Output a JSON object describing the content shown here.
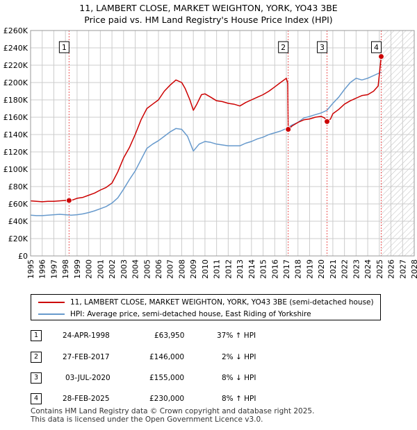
{
  "title_line1": "11, LAMBERT CLOSE, MARKET WEIGHTON, YORK, YO43 3BE",
  "title_line2": "Price paid vs. HM Land Registry's House Price Index (HPI)",
  "colors": {
    "red": "#cc0000",
    "blue": "#6699cc",
    "grid": "#cccccc",
    "marker_line": "#ee5555",
    "hatch": "#bbbbbb"
  },
  "chart_data": {
    "type": "line",
    "y_tick_labels": [
      "£0",
      "£20K",
      "£40K",
      "£60K",
      "£80K",
      "£100K",
      "£120K",
      "£140K",
      "£160K",
      "£180K",
      "£200K",
      "£220K",
      "£240K",
      "£260K"
    ],
    "y_ticks": [
      0,
      20000,
      40000,
      60000,
      80000,
      100000,
      120000,
      140000,
      160000,
      180000,
      200000,
      220000,
      240000,
      260000
    ],
    "ylim": [
      0,
      260000
    ],
    "x_ticks": [
      "1995",
      "1996",
      "1997",
      "1998",
      "1999",
      "2000",
      "2001",
      "2002",
      "2003",
      "2004",
      "2005",
      "2006",
      "2007",
      "2008",
      "2009",
      "2010",
      "2011",
      "2012",
      "2013",
      "2014",
      "2015",
      "2016",
      "2017",
      "2018",
      "2019",
      "2020",
      "2021",
      "2022",
      "2023",
      "2024",
      "2025",
      "2026",
      "2027",
      "2028"
    ],
    "xlim": [
      1995,
      2028
    ],
    "future_region_start": 2025.16,
    "series": [
      {
        "name": "11, LAMBERT CLOSE, MARKET WEIGHTON, YORK, YO43 3BE (semi-detached house)",
        "color": "#cc0000",
        "points": [
          [
            1995.0,
            63500
          ],
          [
            1995.5,
            63000
          ],
          [
            1996.0,
            62500
          ],
          [
            1996.5,
            63000
          ],
          [
            1997.0,
            63000
          ],
          [
            1997.5,
            63500
          ],
          [
            1998.0,
            64000
          ],
          [
            1998.3,
            63950
          ],
          [
            1998.6,
            64500
          ],
          [
            1999.0,
            66500
          ],
          [
            1999.5,
            67500
          ],
          [
            2000.0,
            70000
          ],
          [
            2000.5,
            72500
          ],
          [
            2001.0,
            76000
          ],
          [
            2001.5,
            79000
          ],
          [
            2002.0,
            84000
          ],
          [
            2002.5,
            97000
          ],
          [
            2003.0,
            113000
          ],
          [
            2003.5,
            125000
          ],
          [
            2004.0,
            140000
          ],
          [
            2004.5,
            157000
          ],
          [
            2005.0,
            170000
          ],
          [
            2005.5,
            175000
          ],
          [
            2006.0,
            180000
          ],
          [
            2006.5,
            190000
          ],
          [
            2007.0,
            197000
          ],
          [
            2007.5,
            203000
          ],
          [
            2008.0,
            200000
          ],
          [
            2008.3,
            193000
          ],
          [
            2008.7,
            180000
          ],
          [
            2009.0,
            168000
          ],
          [
            2009.3,
            175000
          ],
          [
            2009.7,
            186000
          ],
          [
            2010.0,
            187000
          ],
          [
            2010.5,
            183000
          ],
          [
            2011.0,
            179000
          ],
          [
            2011.5,
            178000
          ],
          [
            2012.0,
            176000
          ],
          [
            2012.5,
            175000
          ],
          [
            2013.0,
            173000
          ],
          [
            2013.5,
            177000
          ],
          [
            2014.0,
            180000
          ],
          [
            2014.5,
            183000
          ],
          [
            2015.0,
            186000
          ],
          [
            2015.5,
            190000
          ],
          [
            2016.0,
            195000
          ],
          [
            2016.5,
            200000
          ],
          [
            2017.0,
            205000
          ],
          [
            2017.12,
            199000
          ],
          [
            2017.16,
            146000
          ],
          [
            2017.5,
            150000
          ],
          [
            2018.0,
            154000
          ],
          [
            2018.5,
            157000
          ],
          [
            2019.0,
            158000
          ],
          [
            2019.5,
            160000
          ],
          [
            2020.0,
            161000
          ],
          [
            2020.3,
            159000
          ],
          [
            2020.5,
            155000
          ],
          [
            2020.8,
            158000
          ],
          [
            2021.0,
            164000
          ],
          [
            2021.5,
            169000
          ],
          [
            2022.0,
            175000
          ],
          [
            2022.5,
            179000
          ],
          [
            2023.0,
            182000
          ],
          [
            2023.5,
            185000
          ],
          [
            2024.0,
            186000
          ],
          [
            2024.5,
            190000
          ],
          [
            2024.9,
            196000
          ],
          [
            2025.16,
            230000
          ]
        ]
      },
      {
        "name": "HPI: Average price, semi-detached house, East Riding of Yorkshire",
        "color": "#6699cc",
        "points": [
          [
            1995.0,
            47000
          ],
          [
            1995.5,
            46500
          ],
          [
            1996.0,
            46500
          ],
          [
            1996.5,
            47000
          ],
          [
            1997.0,
            47500
          ],
          [
            1997.5,
            48000
          ],
          [
            1998.0,
            47500
          ],
          [
            1998.5,
            47000
          ],
          [
            1999.0,
            47500
          ],
          [
            1999.5,
            48500
          ],
          [
            2000.0,
            50000
          ],
          [
            2000.5,
            52000
          ],
          [
            2001.0,
            54500
          ],
          [
            2001.5,
            57000
          ],
          [
            2002.0,
            61000
          ],
          [
            2002.5,
            67000
          ],
          [
            2003.0,
            77000
          ],
          [
            2003.5,
            88000
          ],
          [
            2004.0,
            98000
          ],
          [
            2004.5,
            111000
          ],
          [
            2005.0,
            124000
          ],
          [
            2005.5,
            129000
          ],
          [
            2006.0,
            133000
          ],
          [
            2006.5,
            138000
          ],
          [
            2007.0,
            143000
          ],
          [
            2007.5,
            147000
          ],
          [
            2008.0,
            146000
          ],
          [
            2008.5,
            138000
          ],
          [
            2009.0,
            121000
          ],
          [
            2009.5,
            129000
          ],
          [
            2010.0,
            132000
          ],
          [
            2010.5,
            131000
          ],
          [
            2011.0,
            129000
          ],
          [
            2011.5,
            128000
          ],
          [
            2012.0,
            127000
          ],
          [
            2012.5,
            127000
          ],
          [
            2013.0,
            127000
          ],
          [
            2013.5,
            130000
          ],
          [
            2014.0,
            132000
          ],
          [
            2014.5,
            135000
          ],
          [
            2015.0,
            137000
          ],
          [
            2015.5,
            140000
          ],
          [
            2016.0,
            142000
          ],
          [
            2016.5,
            144000
          ],
          [
            2017.0,
            147000
          ],
          [
            2017.5,
            151000
          ],
          [
            2018.0,
            154000
          ],
          [
            2018.5,
            159000
          ],
          [
            2019.0,
            161000
          ],
          [
            2019.5,
            163000
          ],
          [
            2020.0,
            165000
          ],
          [
            2020.5,
            168000
          ],
          [
            2021.0,
            176000
          ],
          [
            2021.5,
            183000
          ],
          [
            2022.0,
            192000
          ],
          [
            2022.5,
            200000
          ],
          [
            2023.0,
            205000
          ],
          [
            2023.5,
            203000
          ],
          [
            2024.0,
            205000
          ],
          [
            2024.5,
            208000
          ],
          [
            2025.16,
            212000
          ]
        ]
      }
    ],
    "markers": [
      {
        "label": "1",
        "x": 1998.31,
        "y": 63950
      },
      {
        "label": "2",
        "x": 2017.16,
        "y": 146000
      },
      {
        "label": "3",
        "x": 2020.5,
        "y": 155000
      },
      {
        "label": "4",
        "x": 2025.16,
        "y": 230000
      }
    ]
  },
  "legend": {
    "red_label": "11, LAMBERT CLOSE, MARKET WEIGHTON, YORK, YO43 3BE (semi-detached house)",
    "blue_label": "HPI: Average price, semi-detached house, East Riding of Yorkshire"
  },
  "transactions": [
    {
      "num": "1",
      "date": "24-APR-1998",
      "price": "£63,950",
      "hpi": "37% ↑ HPI"
    },
    {
      "num": "2",
      "date": "27-FEB-2017",
      "price": "£146,000",
      "hpi": "2% ↓ HPI"
    },
    {
      "num": "3",
      "date": "03-JUL-2020",
      "price": "£155,000",
      "hpi": "8% ↓ HPI"
    },
    {
      "num": "4",
      "date": "28-FEB-2025",
      "price": "£230,000",
      "hpi": "8% ↑ HPI"
    }
  ],
  "footer_line1": "Contains HM Land Registry data © Crown copyright and database right 2025.",
  "footer_line2": "This data is licensed under the Open Government Licence v3.0."
}
